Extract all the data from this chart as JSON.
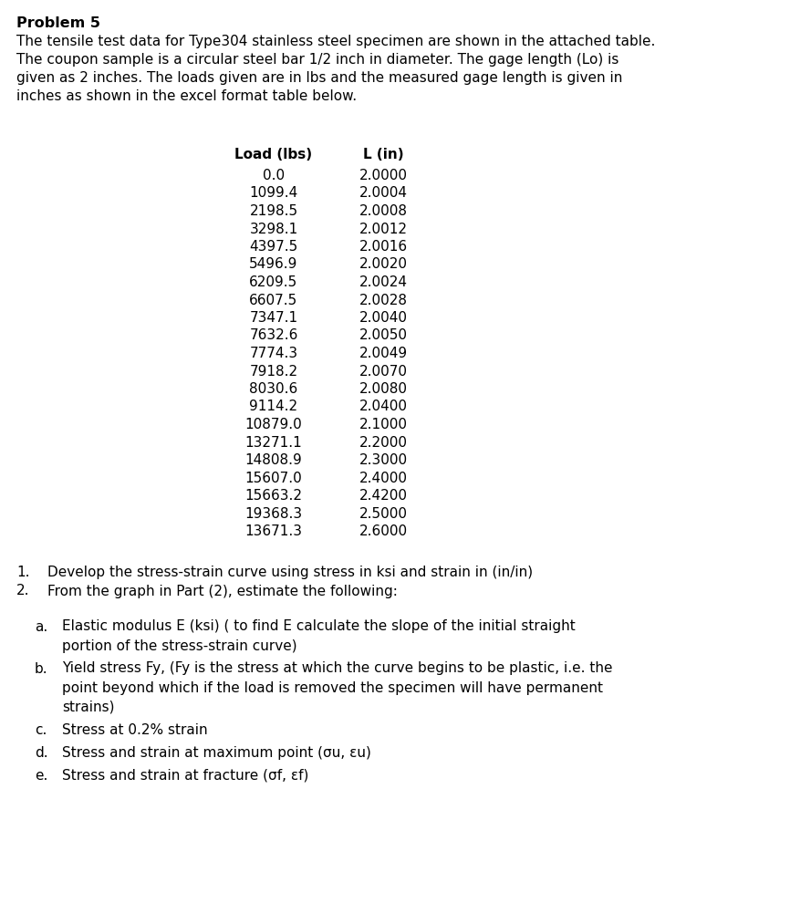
{
  "title": "Problem 5",
  "intro_lines": [
    "The tensile test data for Type304 stainless steel specimen are shown in the attached table.",
    "The coupon sample is a circular steel bar 1/2 inch in diameter. The gage length (Lo) is",
    "given as 2 inches. The loads given are in lbs and the measured gage length is given in",
    "inches as shown in the excel format table below."
  ],
  "col1_header": "Load (lbs)",
  "col2_header": "L (in)",
  "loads": [
    "0.0",
    "1099.4",
    "2198.5",
    "3298.1",
    "4397.5",
    "5496.9",
    "6209.5",
    "6607.5",
    "7347.1",
    "7632.6",
    "7774.3",
    "7918.2",
    "8030.6",
    "9114.2",
    "10879.0",
    "13271.1",
    "14808.9",
    "15607.0",
    "15663.2",
    "19368.3",
    "13671.3"
  ],
  "lengths": [
    "2.0000",
    "2.0004",
    "2.0008",
    "2.0012",
    "2.0016",
    "2.0020",
    "2.0024",
    "2.0028",
    "2.0040",
    "2.0050",
    "2.0049",
    "2.0070",
    "2.0080",
    "2.0400",
    "2.1000",
    "2.2000",
    "2.3000",
    "2.4000",
    "2.4200",
    "2.5000",
    "2.6000"
  ],
  "num_items": [
    "Develop the stress-strain curve using stress in ksi and strain in (in/in)",
    "From the graph in Part (2), estimate the following:"
  ],
  "letter_items": [
    [
      "Elastic modulus E (ksi) ( to find E calculate the slope of the initial straight",
      "portion of the stress-strain curve)"
    ],
    [
      "Yield stress Fy, (Fy is the stress at which the curve begins to be plastic, i.e. the",
      "point beyond which if the load is removed the specimen will have permanent",
      "strains)"
    ],
    [
      "Stress at 0.2% strain"
    ],
    [
      "Stress and strain at maximum point (σu, εu)"
    ],
    [
      "Stress and strain at fracture (σf, εf)"
    ]
  ],
  "letter_labels": [
    "a.",
    "b.",
    "c.",
    "d.",
    "e."
  ],
  "bg_color": "#ffffff",
  "text_color": "#000000",
  "title_fontsize": 11.5,
  "body_fontsize": 11.0,
  "table_fontsize": 11.0
}
